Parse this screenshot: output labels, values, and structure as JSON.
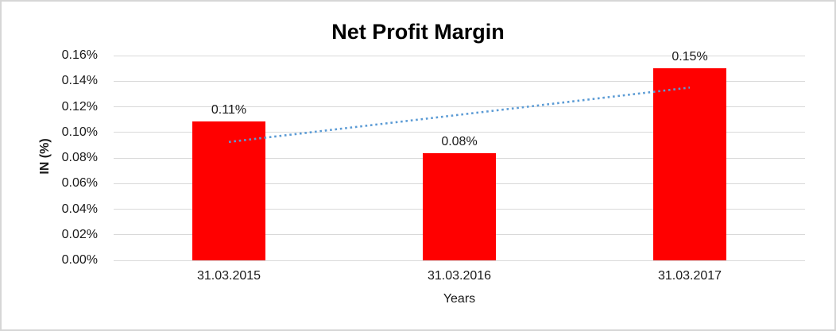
{
  "chart": {
    "title": "Net Profit Margin",
    "y_axis_title": "IN (%)",
    "x_axis_title": "Years"
  },
  "chart_data": {
    "type": "bar",
    "title": "Net Profit Margin",
    "xlabel": "Years",
    "ylabel": "IN (%)",
    "unit": "percent",
    "categories": [
      "31.03.2015",
      "31.03.2016",
      "31.03.2017"
    ],
    "values": [
      0.1085,
      0.0835,
      0.15
    ],
    "data_labels": [
      "0.11%",
      "0.08%",
      "0.15%"
    ],
    "ylim": [
      0,
      0.16
    ],
    "y_tick_step": 0.02,
    "y_tick_labels": [
      "0.00%",
      "0.02%",
      "0.04%",
      "0.06%",
      "0.08%",
      "0.10%",
      "0.12%",
      "0.14%",
      "0.16%"
    ],
    "grid": true,
    "legend": false,
    "bar_color": "#ff0000",
    "gridline_color": "#d9d9d9",
    "trendline": {
      "type": "linear",
      "style": "dotted",
      "color": "#5b9bd5",
      "start_value": 0.0925,
      "end_value": 0.135
    }
  }
}
